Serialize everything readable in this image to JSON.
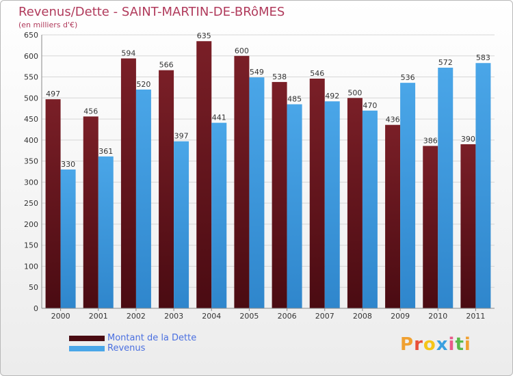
{
  "header": {
    "title": "Revenus/Dette - SAINT-MARTIN-DE-BRôMES",
    "subtitle": "(en milliers d'€)"
  },
  "colors": {
    "dette": "#7a1f27",
    "dette_dark": "#4a0b12",
    "revenus": "#4aa6e8",
    "revenus_dark": "#2f86cc",
    "grid": "#d6d6d6"
  },
  "logo": {
    "text": "Proxiti",
    "letter_colors": [
      "#f0a030",
      "#e8503a",
      "#f5c518",
      "#3aa0e0",
      "#e85a8a",
      "#5ab84a",
      "#f0a030"
    ]
  },
  "chart_data": {
    "type": "bar",
    "title": "Revenus/Dette - SAINT-MARTIN-DE-BRôMES",
    "subtitle": "(en milliers d'€)",
    "categories": [
      "2000",
      "2001",
      "2002",
      "2003",
      "2004",
      "2005",
      "2006",
      "2007",
      "2008",
      "2009",
      "2010",
      "2011"
    ],
    "series": [
      {
        "name": "Montant de la Dette",
        "values": [
          497,
          456,
          594,
          566,
          635,
          600,
          538,
          546,
          500,
          436,
          386,
          390
        ]
      },
      {
        "name": "Revenus",
        "values": [
          330,
          361,
          520,
          397,
          441,
          549,
          485,
          492,
          470,
          536,
          572,
          583
        ]
      }
    ],
    "yticks": [
      0,
      50,
      100,
      150,
      200,
      250,
      300,
      350,
      400,
      450,
      500,
      550,
      600,
      650
    ],
    "ylim": [
      0,
      650
    ],
    "grid": true,
    "legend": "bottom-left"
  }
}
